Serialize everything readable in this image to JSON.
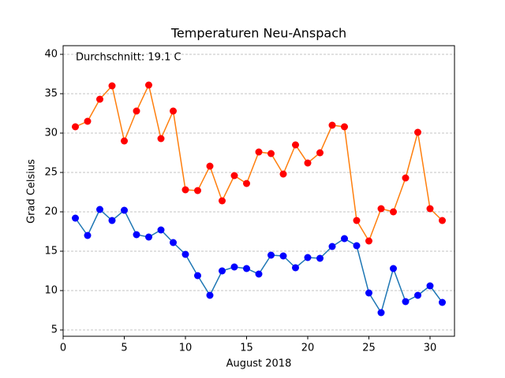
{
  "chart_data": {
    "type": "line",
    "title": "Temperaturen Neu-Anspach",
    "xlabel": "August 2018",
    "ylabel": "Grad Celsius",
    "annotation": {
      "text": "Durchschnitt: 19.1 C",
      "color": "#ff0000"
    },
    "x": [
      1,
      2,
      3,
      4,
      5,
      6,
      7,
      8,
      9,
      10,
      11,
      12,
      13,
      14,
      15,
      16,
      17,
      18,
      19,
      20,
      21,
      22,
      23,
      24,
      25,
      26,
      27,
      28,
      29,
      30,
      31
    ],
    "series": [
      {
        "color": "#ff7f0e",
        "marker_color": "#ff0000",
        "values": [
          30.8,
          31.5,
          34.3,
          36.0,
          29.0,
          32.8,
          36.1,
          29.3,
          32.8,
          22.8,
          22.7,
          25.8,
          21.4,
          24.6,
          23.6,
          27.6,
          27.4,
          24.8,
          28.5,
          26.2,
          27.5,
          31.0,
          30.8,
          18.9,
          16.3,
          20.4,
          20.0,
          24.3,
          30.1,
          20.4,
          18.9
        ]
      },
      {
        "color": "#1f77b4",
        "marker_color": "#0000ff",
        "values": [
          19.2,
          17.0,
          20.3,
          18.9,
          20.2,
          17.1,
          16.8,
          17.7,
          16.1,
          14.6,
          11.9,
          9.4,
          12.5,
          13.0,
          12.8,
          12.1,
          14.5,
          14.4,
          12.9,
          14.2,
          14.1,
          15.6,
          16.6,
          15.7,
          9.7,
          7.2,
          12.8,
          8.6,
          9.4,
          10.6,
          8.5
        ]
      }
    ],
    "xlim": [
      0,
      32
    ],
    "xticks": [
      0,
      5,
      10,
      15,
      20,
      25,
      30
    ],
    "ylim": [
      4.2,
      41.1
    ],
    "yticks": [
      5,
      10,
      15,
      20,
      25,
      30,
      35,
      40
    ],
    "grid": "y"
  }
}
